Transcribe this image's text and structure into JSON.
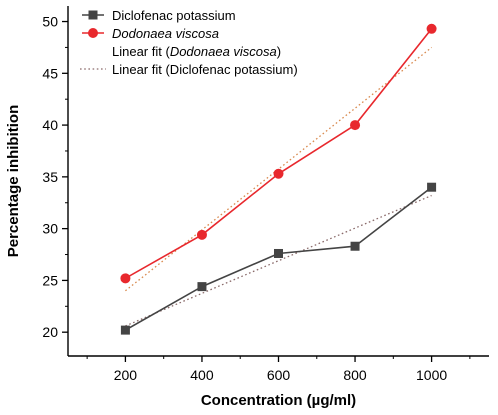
{
  "chart_data": {
    "type": "line",
    "xlabel": "Concentration (µg/ml)",
    "ylabel": "Percentage inhibition",
    "x": [
      200,
      400,
      600,
      800,
      1000
    ],
    "xlim": [
      50,
      1150
    ],
    "ylim": [
      17.7,
      51.5
    ],
    "xticks": [
      "200",
      "400",
      "600",
      "800",
      "1000"
    ],
    "yticks": [
      "20",
      "25",
      "30",
      "35",
      "40",
      "45",
      "50"
    ],
    "grid": false,
    "legend_position": "top-left",
    "series": [
      {
        "name": "Diclofenac potassium",
        "values": [
          20.2,
          24.4,
          27.6,
          28.3,
          34.0
        ],
        "color": "#444444",
        "marker": "square"
      },
      {
        "name": "Dodonaea viscosa",
        "values": [
          25.2,
          29.4,
          35.3,
          40.0,
          49.3
        ],
        "color": "#e8282d",
        "marker": "circle"
      }
    ],
    "fits": [
      {
        "name": "Linear fit (Dodonaea viscosa)",
        "values": [
          24.0,
          29.9,
          35.8,
          41.6,
          47.5
        ],
        "color": "#d98a4f"
      },
      {
        "name": "Linear fit (Diclofenac potassium)",
        "values": [
          20.6,
          23.8,
          26.9,
          30.1,
          33.2
        ],
        "color": "#8a6a6a"
      }
    ]
  },
  "legend": [
    {
      "label_prefix": "Diclofenac potassium",
      "label_italic": "",
      "label_suffix": ""
    },
    {
      "label_prefix": "",
      "label_italic": "Dodonaea viscosa",
      "label_suffix": ""
    },
    {
      "label_prefix": "Linear fit (",
      "label_italic": "Dodonaea viscosa",
      "label_suffix": ")"
    },
    {
      "label_prefix": "Linear fit (Diclofenac potassium)",
      "label_italic": "",
      "label_suffix": ""
    }
  ]
}
